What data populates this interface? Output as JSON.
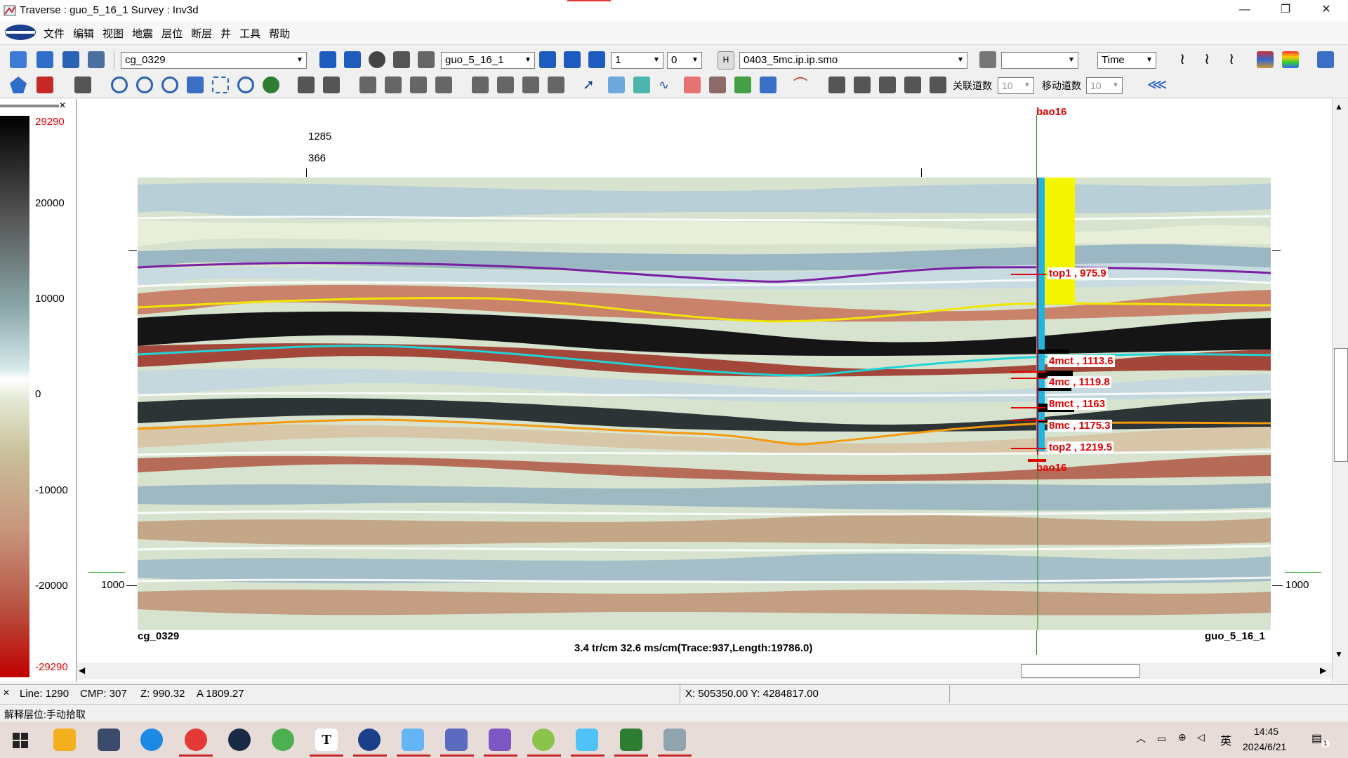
{
  "window": {
    "title": "Traverse : guo_5_16_1  Survey : Inv3d",
    "minimize": "—",
    "maximize": "❐",
    "close": "✕"
  },
  "menu": [
    "文件",
    "编辑",
    "视图",
    "地震",
    "层位",
    "断层",
    "井",
    "工具",
    "帮助"
  ],
  "toolbar1": {
    "line_combo": "cg_0329",
    "traverse_combo": "guo_5_16_1",
    "step_combo": "1",
    "offset_combo": "0",
    "h_label": "H",
    "volume_combo": "0403_5mc.ip.ip.smo",
    "domain_combo": "Time"
  },
  "toolbar2": {
    "linked_traces_label": "关联道数",
    "linked_traces_value": "10",
    "move_traces_label": "移动道数",
    "move_traces_value": "10"
  },
  "scale": {
    "max": "29290",
    "min": "-29290",
    "ticks": [
      "20000",
      "10000",
      "0",
      "-10000",
      "-20000"
    ]
  },
  "section": {
    "top_label_1": "1285",
    "top_label_2": "366",
    "left_depth_tick": "1000",
    "right_depth_tick": "1000",
    "bottom_left": "cg_0329",
    "bottom_right": "guo_5_16_1",
    "info": "3.4 tr/cm 32.6 ms/cm(Trace:937,Length:19786.0)",
    "well_name_top": "bao16",
    "well_name_bottom": "bao16",
    "well_tops": [
      {
        "label": "top1 , 975.9"
      },
      {
        "label": "4mct , 1113.6"
      },
      {
        "label": "4mc , 1119.8"
      },
      {
        "label": "8mct , 1163"
      },
      {
        "label": "8mc , 1175.3"
      },
      {
        "label": "top2 , 1219.5"
      }
    ],
    "horizon_colors": {
      "purple": "#7b1fa2",
      "yellow": "#f2e600",
      "cyan": "#22d3d8",
      "orange": "#f59a0c"
    }
  },
  "status": {
    "line": "Line: 1290",
    "cmp": "CMP:  307",
    "z": "Z: 990.32",
    "a": "A  1809.27",
    "xy": "X: 505350.00  Y: 4284817.00",
    "mode": "解释层位:手动拾取"
  },
  "taskbar": {
    "time": "14:45",
    "date": "2024/6/21",
    "ime": "英",
    "notif_count": "1"
  }
}
